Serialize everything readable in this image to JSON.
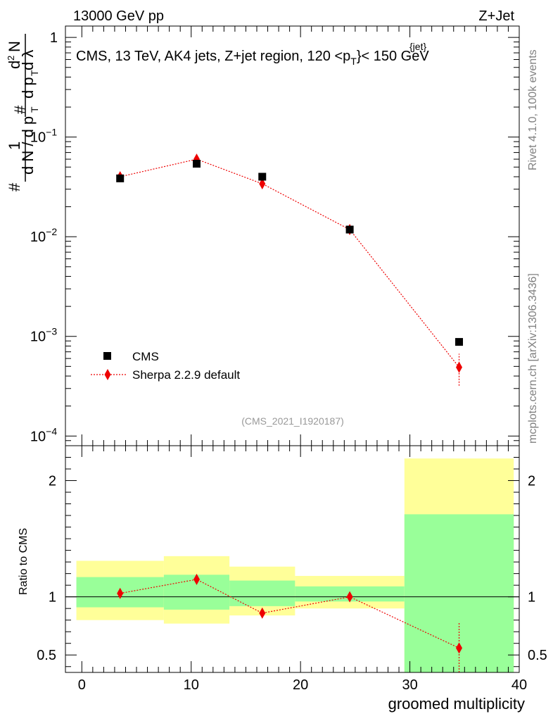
{
  "header": {
    "left": "13000 GeV pp",
    "right": "Z+Jet"
  },
  "side": {
    "rivet": "Rivet 4.1.0,  100k events",
    "mcplots": "mcplots.cern.ch [arXiv:1306.3436]"
  },
  "labels": {
    "region_main": "CMS, 13 TeV, AK4 jets, Z+jet region, 120 <p",
    "region_sup": "{jet}",
    "region_sub": "T",
    "region_tail": "}< 150 GeV",
    "analysis_id": "(CMS_2021_I1920187)",
    "ratio_ylabel": "Ratio to CMS",
    "xlabel": "groomed multiplicity",
    "ylabel": "1/N dN/dp_T dλ"
  },
  "legend": {
    "cms": "CMS",
    "sherpa": "Sherpa 2.2.9 default"
  },
  "colors": {
    "data": "#000000",
    "mc": "#ee0000",
    "band_outer": "#ffff99",
    "band_inner": "#99ff99"
  },
  "chart_data": {
    "type": "scatter",
    "x_range": [
      -1.5,
      40
    ],
    "upper_y_scale": "log",
    "upper_y_range": [
      8e-05,
      1.3
    ],
    "upper_y_ticks": [
      {
        "v": 1,
        "m": "1",
        "e": ""
      },
      {
        "v": 0.1,
        "m": "10",
        "e": "−1"
      },
      {
        "v": 0.01,
        "m": "10",
        "e": "−2"
      },
      {
        "v": 0.001,
        "m": "10",
        "e": "−3"
      },
      {
        "v": 0.0001,
        "m": "10",
        "e": "−4"
      }
    ],
    "ratio_y_range": [
      0.35,
      2.3
    ],
    "ratio_y_ticks": [
      {
        "v": 0.5,
        "label": "0.5"
      },
      {
        "v": 1,
        "label": "1"
      },
      {
        "v": 2,
        "label": "2"
      }
    ],
    "x_ticks": [
      0,
      10,
      20,
      30,
      40
    ],
    "series": [
      {
        "name": "CMS",
        "style": "square",
        "x": [
          3.5,
          10.5,
          16.5,
          24.5,
          34.5
        ],
        "y": [
          0.0385,
          0.054,
          0.04,
          0.0118,
          0.00088
        ]
      },
      {
        "name": "Sherpa 2.2.9 default",
        "style": "diamond-dotted",
        "x": [
          3.5,
          10.5,
          16.5,
          24.5,
          34.5
        ],
        "y": [
          0.04,
          0.06,
          0.034,
          0.0118,
          0.00049
        ],
        "y_err_low": [
          0.0387,
          0.0578,
          0.0328,
          0.0113,
          0.00032
        ],
        "y_err_high": [
          0.0413,
          0.0622,
          0.0352,
          0.0123,
          0.00067
        ]
      }
    ],
    "ratio": {
      "bins": [
        [
          -0.5,
          7.5
        ],
        [
          7.5,
          13.5
        ],
        [
          13.5,
          19.5
        ],
        [
          19.5,
          29.5
        ],
        [
          29.5,
          39.5
        ]
      ],
      "band_inner": [
        [
          0.91,
          1.17
        ],
        [
          0.89,
          1.19
        ],
        [
          0.92,
          1.14
        ],
        [
          0.96,
          1.09
        ],
        [
          0.35,
          1.71
        ]
      ],
      "band_outer": [
        [
          0.8,
          1.31
        ],
        [
          0.77,
          1.35
        ],
        [
          0.84,
          1.26
        ],
        [
          0.9,
          1.18
        ],
        [
          0.35,
          2.19
        ]
      ],
      "x": [
        3.5,
        10.5,
        16.5,
        24.5,
        34.5
      ],
      "y": [
        1.03,
        1.15,
        0.86,
        1.0,
        0.56
      ],
      "y_err_low": [
        0.99,
        1.11,
        0.83,
        0.96,
        0.35
      ],
      "y_err_high": [
        1.07,
        1.19,
        0.89,
        1.04,
        0.78
      ]
    }
  }
}
